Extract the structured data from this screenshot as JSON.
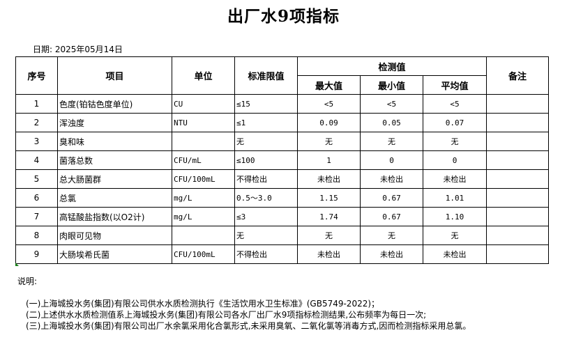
{
  "title": "出厂水9项指标",
  "date_label": "日期: 2025年05月14日",
  "table": {
    "headers": {
      "no": "序号",
      "item": "项目",
      "unit": "单位",
      "limit": "标准限值",
      "measured": "检测值",
      "max": "最大值",
      "min": "最小值",
      "avg": "平均值",
      "remark": "备注"
    },
    "rows": [
      {
        "no": "1",
        "item": "色度(铂钴色度单位)",
        "unit": "CU",
        "limit": "≤15",
        "max": "<5",
        "min": "<5",
        "avg": "<5",
        "remark": ""
      },
      {
        "no": "2",
        "item": "浑浊度",
        "unit": "NTU",
        "limit": "≤1",
        "max": "0.09",
        "min": "0.05",
        "avg": "0.07",
        "remark": ""
      },
      {
        "no": "3",
        "item": "臭和味",
        "unit": "",
        "limit": "无",
        "max": "无",
        "min": "无",
        "avg": "无",
        "remark": ""
      },
      {
        "no": "4",
        "item": "菌落总数",
        "unit": "CFU/mL",
        "limit": "≤100",
        "max": "1",
        "min": "0",
        "avg": "0",
        "remark": ""
      },
      {
        "no": "5",
        "item": "总大肠菌群",
        "unit": "CFU/100mL",
        "limit": "不得检出",
        "max": "未检出",
        "min": "未检出",
        "avg": "未检出",
        "remark": ""
      },
      {
        "no": "6",
        "item": "总氯",
        "unit": "mg/L",
        "limit": "0.5～3.0",
        "max": "1.15",
        "min": "0.67",
        "avg": "1.01",
        "remark": ""
      },
      {
        "no": "7",
        "item": "高锰酸盐指数(以O2计)",
        "unit": "mg/L",
        "limit": "≤3",
        "max": "1.74",
        "min": "0.67",
        "avg": "1.10",
        "remark": ""
      },
      {
        "no": "8",
        "item": "肉眼可见物",
        "unit": "",
        "limit": "无",
        "max": "无",
        "min": "无",
        "avg": "无",
        "remark": ""
      },
      {
        "no": "9",
        "item": "大肠埃希氏菌",
        "unit": "CFU/100mL",
        "limit": "不得检出",
        "max": "未检出",
        "min": "未检出",
        "avg": "未检出",
        "remark": ""
      }
    ]
  },
  "notes": {
    "heading": "说明:",
    "items": [
      "(一)上海城投水务(集团)有限公司供水水质检测执行《生活饮用水卫生标准》(GB5749-2022)；",
      "(二)上述供水水质检测值系上海城投水务(集团)有限公司各水厂出厂水9项指标检测结果,公布频率为每日一次;",
      "(三)上海城投水务(集团)有限公司出厂水余氯采用化合氯形式,未采用臭氧、二氧化氯等消毒方式,因而检测指标采用总氯。"
    ]
  }
}
